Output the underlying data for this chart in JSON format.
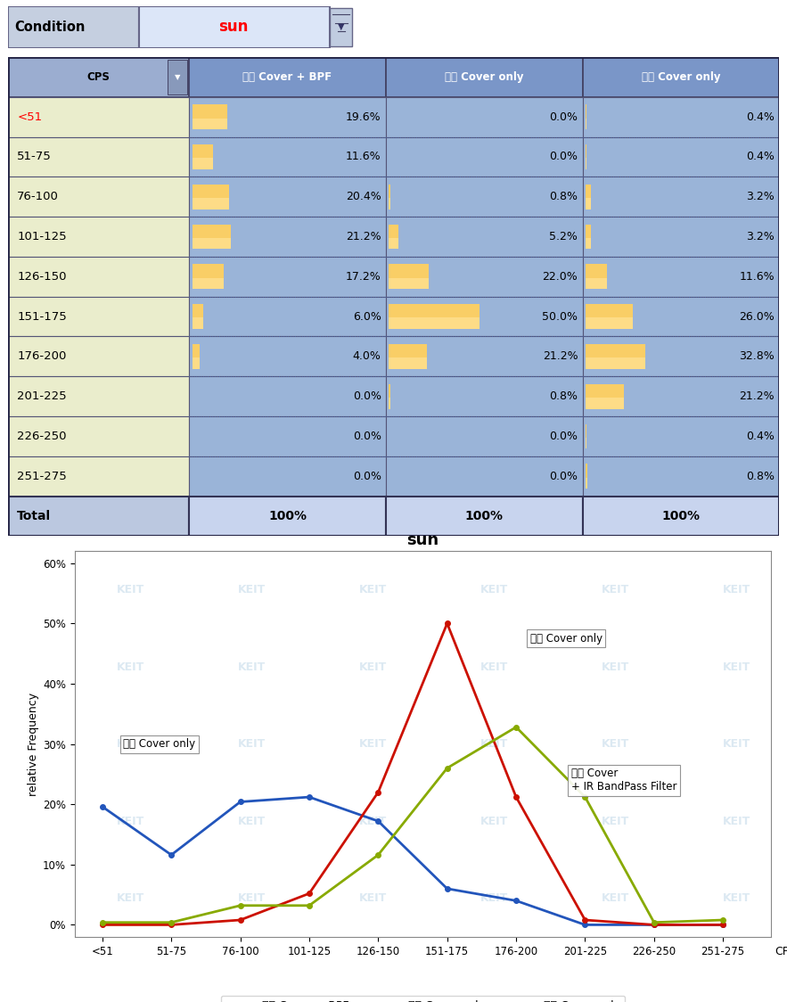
{
  "condition_label": "Condition",
  "condition_value": "sun",
  "table_headers": [
    "CPS",
    "기존 Cover + BPF",
    "개선 Cover only",
    "기존 Cover only"
  ],
  "cps_labels": [
    "<51",
    "51-75",
    "76-100",
    "101-125",
    "126-150",
    "151-175",
    "176-200",
    "201-225",
    "226-250",
    "251-275",
    "Total"
  ],
  "bpf_values": [
    19.6,
    11.6,
    20.4,
    21.2,
    17.2,
    6.0,
    4.0,
    0.0,
    0.0,
    0.0,
    100
  ],
  "cover_only_new_values": [
    0.0,
    0.0,
    0.8,
    5.2,
    22.0,
    50.0,
    21.2,
    0.8,
    0.0,
    0.0,
    100
  ],
  "cover_only_old_values": [
    0.4,
    0.4,
    3.2,
    3.2,
    11.6,
    26.0,
    32.8,
    21.2,
    0.4,
    0.8,
    100
  ],
  "chart_title": "sun",
  "chart_xlabel": "CPS",
  "chart_ylabel": "relative Frequency",
  "bpf_line_color": "#2255bb",
  "cover_new_line_color": "#cc1100",
  "cover_old_line_color": "#88aa00",
  "legend_bpf": "기존 Cover + BPF",
  "legend_cover_new": "개선 Cover only",
  "legend_cover_old": "기존 Cover only",
  "annotation_cover_new": "개선 Cover only",
  "annotation_cover_old": "기존 Cover only",
  "annotation_bpf": "기존 Cover\n+ IR BandPass Filter",
  "table_bg_header": "#7a96c8",
  "table_bg_cps": "#eaedcc",
  "table_bg_data": "#9ab4d8",
  "bar_color_top": "#ffd070",
  "bar_color_bot": "#f5a020",
  "chart_bg": "#ffffff",
  "header_text_color": "#ffffff",
  "cps_header_bg": "#9badd0",
  "total_cps_bg": "#bbc8e0",
  "total_data_bg": "#c8d4ee"
}
